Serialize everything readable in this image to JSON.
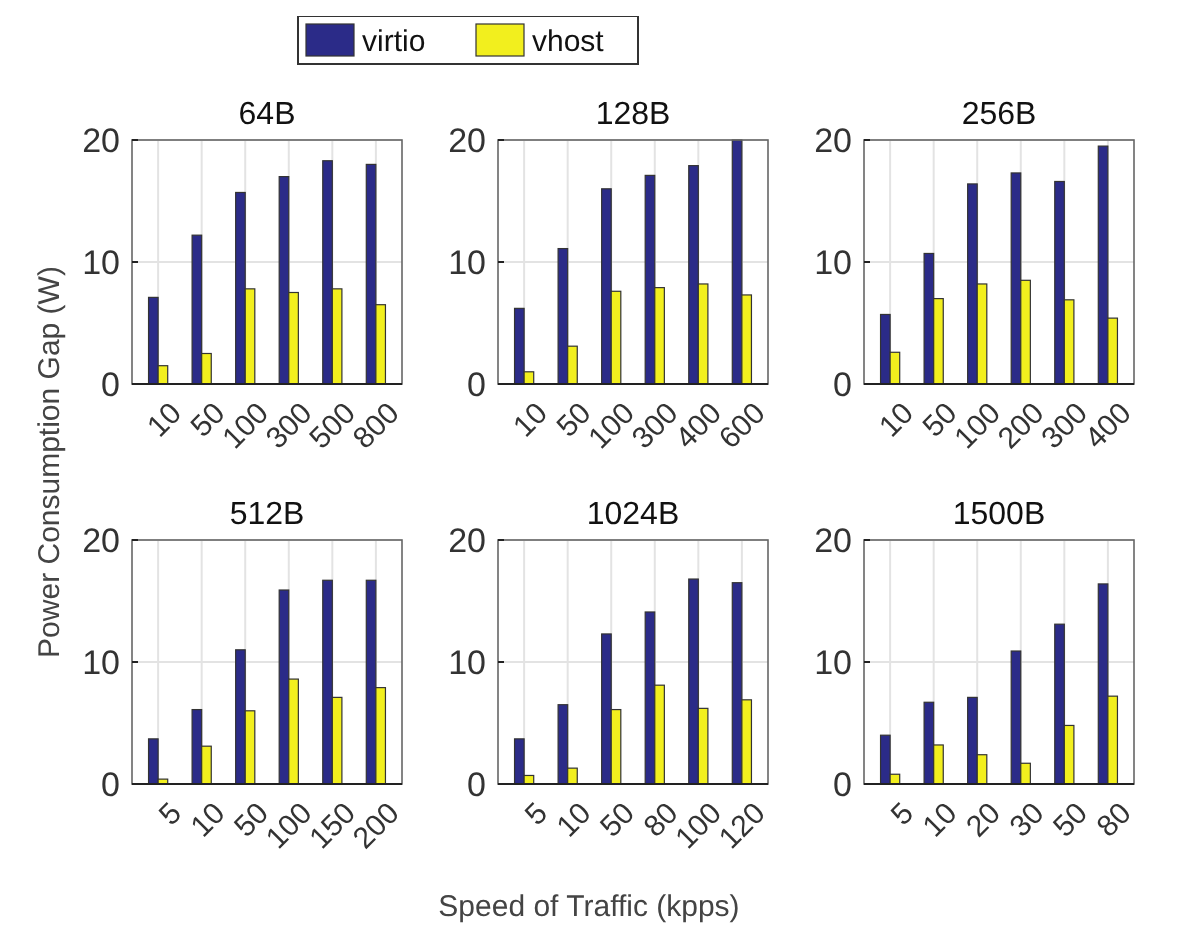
{
  "chart_data": [
    {
      "type": "bar",
      "title": "64B",
      "ylabel": "Power Consumption Gap (W)",
      "legend": "top",
      "categories": [
        "10",
        "50",
        "100",
        "300",
        "500",
        "800"
      ],
      "ylim": [
        0,
        20
      ],
      "yticks": [
        0,
        10,
        20
      ],
      "grid": true,
      "series": [
        {
          "name": "virtio",
          "color": "#2b2b88",
          "values": [
            7.1,
            12.2,
            15.7,
            17.0,
            18.3,
            18.0
          ]
        },
        {
          "name": "vhost",
          "color": "#f2ef1e",
          "values": [
            1.5,
            2.5,
            7.8,
            7.5,
            7.8,
            6.5
          ]
        }
      ]
    },
    {
      "type": "bar",
      "title": "128B",
      "categories": [
        "10",
        "50",
        "100",
        "300",
        "400",
        "600"
      ],
      "ylim": [
        0,
        20
      ],
      "yticks": [
        0,
        10,
        20
      ],
      "grid": true,
      "series": [
        {
          "color": "#2b2b88",
          "values": [
            6.2,
            11.1,
            16.0,
            17.1,
            17.9,
            20
          ]
        },
        {
          "color": "#f2ef1e",
          "values": [
            1.0,
            3.1,
            7.6,
            7.9,
            8.2,
            7.3
          ]
        }
      ]
    },
    {
      "type": "bar",
      "title": "256B",
      "categories": [
        "10",
        "50",
        "100",
        "200",
        "300",
        "400"
      ],
      "ylim": [
        0,
        20
      ],
      "yticks": [
        0,
        10,
        20
      ],
      "grid": true,
      "series": [
        {
          "color": "#2b2b88",
          "values": [
            5.7,
            10.7,
            16.4,
            17.3,
            16.6,
            19.5
          ]
        },
        {
          "color": "#f2ef1e",
          "values": [
            2.6,
            7.0,
            8.2,
            8.5,
            6.9,
            5.4
          ]
        }
      ]
    },
    {
      "type": "bar",
      "title": "512B",
      "categories": [
        "5",
        "10",
        "50",
        "100",
        "150",
        "200"
      ],
      "ylim": [
        0,
        20
      ],
      "yticks": [
        0,
        10,
        20
      ],
      "grid": true,
      "series": [
        {
          "color": "#2b2b88",
          "values": [
            3.7,
            6.1,
            11.0,
            15.9,
            16.7,
            16.7
          ]
        },
        {
          "color": "#f2ef1e",
          "values": [
            0.4,
            3.1,
            6.0,
            8.6,
            7.1,
            7.9
          ]
        }
      ]
    },
    {
      "type": "bar",
      "title": "1024B",
      "xlabel": "Speed of Traffic (kpps)",
      "categories": [
        "5",
        "10",
        "50",
        "80",
        "100",
        "120"
      ],
      "ylim": [
        0,
        20
      ],
      "yticks": [
        0,
        10,
        20
      ],
      "grid": true,
      "series": [
        {
          "color": "#2b2b88",
          "values": [
            3.7,
            6.5,
            12.3,
            14.1,
            16.8,
            16.5
          ]
        },
        {
          "color": "#f2ef1e",
          "values": [
            0.7,
            1.3,
            6.1,
            8.1,
            6.2,
            6.9
          ]
        }
      ]
    },
    {
      "type": "bar",
      "title": "1500B",
      "categories": [
        "5",
        "10",
        "20",
        "30",
        "50",
        "80"
      ],
      "ylim": [
        0,
        20
      ],
      "yticks": [
        0,
        10,
        20
      ],
      "grid": true,
      "series": [
        {
          "color": "#2b2b88",
          "values": [
            4.0,
            6.7,
            7.1,
            10.9,
            13.1,
            16.4
          ]
        },
        {
          "color": "#f2ef1e",
          "values": [
            0.8,
            3.2,
            2.4,
            1.7,
            4.8,
            7.2
          ]
        }
      ]
    }
  ]
}
